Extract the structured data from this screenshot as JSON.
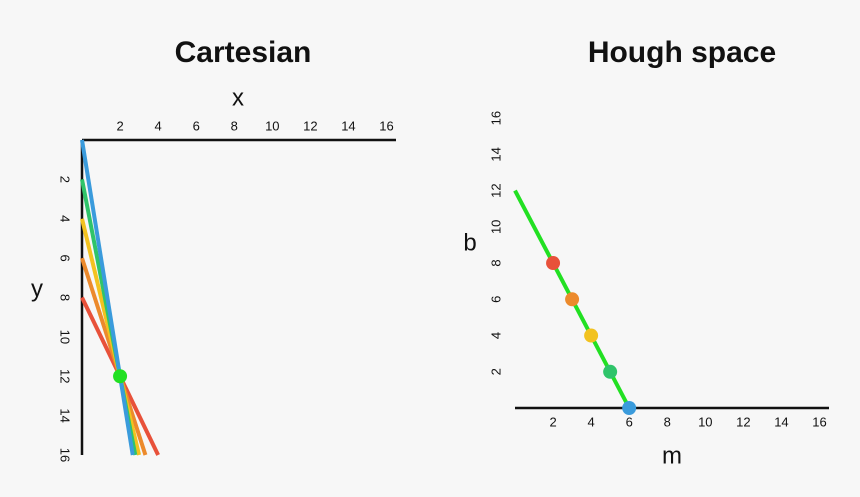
{
  "chart_data": [
    {
      "type": "lines",
      "title": "Cartesian",
      "xlabel": "x",
      "ylabel": "y",
      "xlim": [
        0,
        16.5
      ],
      "ylim": [
        0,
        16
      ],
      "xticks": [
        2,
        4,
        6,
        8,
        10,
        12,
        14,
        16
      ],
      "yticks": [
        2,
        4,
        6,
        8,
        10,
        12,
        14,
        16
      ],
      "x_axis_position": "top",
      "y_inverted": true,
      "series": [
        {
          "color": "#e8513a",
          "slope": 2,
          "intercept": 8
        },
        {
          "color": "#ec8a2c",
          "slope": 3,
          "intercept": 6
        },
        {
          "color": "#f2c21f",
          "slope": 4,
          "intercept": 4
        },
        {
          "color": "#2fc46a",
          "slope": 5,
          "intercept": 2
        },
        {
          "color": "#3a9bdc",
          "slope": 6,
          "intercept": 0
        }
      ],
      "point": {
        "x": 2,
        "y": 12,
        "color": "#22e022"
      }
    },
    {
      "type": "scatter",
      "title": "Hough space",
      "xlabel": "m",
      "ylabel": "b",
      "xlim": [
        0,
        16.5
      ],
      "ylim": [
        0,
        17
      ],
      "xticks": [
        2,
        4,
        6,
        8,
        10,
        12,
        14,
        16
      ],
      "yticks": [
        2,
        4,
        6,
        8,
        10,
        12,
        14,
        16
      ],
      "x_axis_position": "bottom",
      "y_inverted": false,
      "x": [
        2,
        3,
        4,
        5,
        6
      ],
      "y": [
        8,
        6,
        4,
        2,
        0
      ],
      "colors": [
        "#e8513a",
        "#ec8a2c",
        "#f2c21f",
        "#2fc46a",
        "#3a9bdc"
      ],
      "line": {
        "slope": -2,
        "intercept": 12,
        "color": "#22e022"
      }
    }
  ]
}
